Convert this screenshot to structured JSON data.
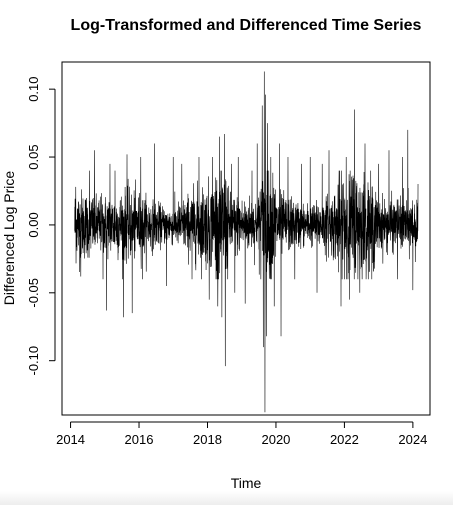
{
  "chart_data": {
    "type": "line",
    "title": "Log-Transformed and Differenced Time Series",
    "xlabel": "Time",
    "ylabel": "Differenced Log Price",
    "xlim": [
      2013.75,
      2024.5
    ],
    "ylim": [
      -0.14,
      0.12
    ],
    "x_ticks": [
      2014,
      2016,
      2018,
      2020,
      2022,
      2024
    ],
    "y_ticks": [
      -0.1,
      -0.05,
      0.0,
      0.05,
      0.1
    ],
    "x_tick_labels": [
      "2014",
      "2016",
      "2018",
      "2020",
      "2022",
      "2024"
    ],
    "y_tick_labels": [
      "-0.10",
      "-0.05",
      "0.00",
      "0.05",
      "0.10"
    ],
    "grid": false,
    "legend": "none",
    "series": [
      {
        "color": "#000000",
        "x_start": 2014.12,
        "x_end": 2024.15,
        "n_points": 2520,
        "noise_sd_typical": 0.013,
        "spikes": [
          {
            "x": 2014.15,
            "y": 0.028
          },
          {
            "x": 2014.3,
            "y": -0.038
          },
          {
            "x": 2014.55,
            "y": 0.04
          },
          {
            "x": 2014.7,
            "y": 0.055
          },
          {
            "x": 2014.95,
            "y": -0.04
          },
          {
            "x": 2015.05,
            "y": -0.063
          },
          {
            "x": 2015.15,
            "y": 0.045
          },
          {
            "x": 2015.3,
            "y": 0.04
          },
          {
            "x": 2015.55,
            "y": -0.068
          },
          {
            "x": 2015.65,
            "y": 0.052
          },
          {
            "x": 2015.8,
            "y": -0.065
          },
          {
            "x": 2016.05,
            "y": 0.05
          },
          {
            "x": 2016.1,
            "y": -0.04
          },
          {
            "x": 2016.45,
            "y": 0.06
          },
          {
            "x": 2016.8,
            "y": -0.045
          },
          {
            "x": 2017.0,
            "y": 0.05
          },
          {
            "x": 2017.25,
            "y": 0.045
          },
          {
            "x": 2017.55,
            "y": -0.04
          },
          {
            "x": 2017.75,
            "y": 0.05
          },
          {
            "x": 2018.05,
            "y": -0.055
          },
          {
            "x": 2018.15,
            "y": 0.05
          },
          {
            "x": 2018.3,
            "y": -0.06
          },
          {
            "x": 2018.35,
            "y": 0.065
          },
          {
            "x": 2018.42,
            "y": -0.068
          },
          {
            "x": 2018.5,
            "y": 0.067
          },
          {
            "x": 2018.52,
            "y": -0.104
          },
          {
            "x": 2018.7,
            "y": 0.045
          },
          {
            "x": 2018.8,
            "y": -0.05
          },
          {
            "x": 2018.9,
            "y": 0.05
          },
          {
            "x": 2019.1,
            "y": -0.058
          },
          {
            "x": 2019.3,
            "y": 0.04
          },
          {
            "x": 2019.45,
            "y": 0.06
          },
          {
            "x": 2019.6,
            "y": 0.088
          },
          {
            "x": 2019.63,
            "y": -0.09
          },
          {
            "x": 2019.66,
            "y": 0.113
          },
          {
            "x": 2019.68,
            "y": -0.138
          },
          {
            "x": 2019.7,
            "y": 0.096
          },
          {
            "x": 2019.72,
            "y": -0.082
          },
          {
            "x": 2019.76,
            "y": 0.075
          },
          {
            "x": 2019.85,
            "y": 0.05
          },
          {
            "x": 2019.95,
            "y": -0.06
          },
          {
            "x": 2020.1,
            "y": 0.06
          },
          {
            "x": 2020.15,
            "y": -0.082
          },
          {
            "x": 2020.35,
            "y": 0.05
          },
          {
            "x": 2020.55,
            "y": -0.04
          },
          {
            "x": 2020.75,
            "y": 0.045
          },
          {
            "x": 2021.0,
            "y": 0.05
          },
          {
            "x": 2021.2,
            "y": -0.05
          },
          {
            "x": 2021.35,
            "y": 0.045
          },
          {
            "x": 2021.55,
            "y": 0.055
          },
          {
            "x": 2021.9,
            "y": -0.06
          },
          {
            "x": 2022.05,
            "y": 0.05
          },
          {
            "x": 2022.15,
            "y": -0.055
          },
          {
            "x": 2022.3,
            "y": 0.085
          },
          {
            "x": 2022.45,
            "y": -0.05
          },
          {
            "x": 2022.6,
            "y": 0.06
          },
          {
            "x": 2022.8,
            "y": -0.04
          },
          {
            "x": 2023.0,
            "y": 0.045
          },
          {
            "x": 2023.3,
            "y": 0.055
          },
          {
            "x": 2023.55,
            "y": -0.04
          },
          {
            "x": 2023.7,
            "y": 0.05
          },
          {
            "x": 2023.85,
            "y": 0.07
          },
          {
            "x": 2024.0,
            "y": -0.048
          }
        ]
      }
    ]
  }
}
